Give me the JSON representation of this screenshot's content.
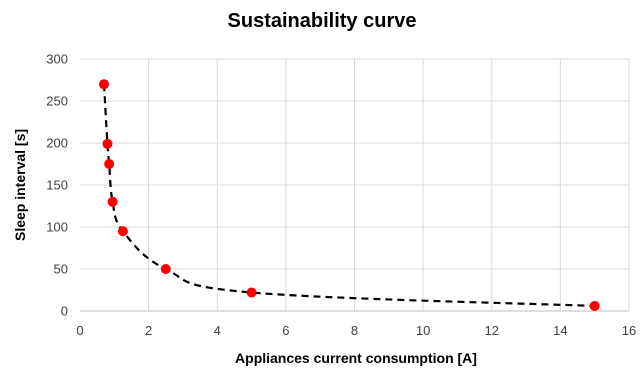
{
  "chart_data": {
    "type": "scatter",
    "title": "Sustainability curve",
    "xlabel": "Appliances current consumption [A]",
    "ylabel": "Sleep interval [s]",
    "xlim": [
      0,
      16
    ],
    "ylim": [
      0,
      300
    ],
    "xticks": [
      0,
      2,
      4,
      6,
      8,
      10,
      12,
      14,
      16
    ],
    "yticks": [
      0,
      50,
      100,
      150,
      200,
      250,
      300
    ],
    "grid": true,
    "legend": "none",
    "series": [
      {
        "x": [
          0.7,
          0.8,
          0.85,
          0.95,
          1.25,
          2.5,
          5.0,
          15.0
        ],
        "y": [
          270,
          199,
          175,
          130,
          95,
          50,
          22,
          6
        ],
        "line_style": "dashed",
        "line_color": "#000000",
        "marker_color": "#ff0000"
      }
    ]
  }
}
